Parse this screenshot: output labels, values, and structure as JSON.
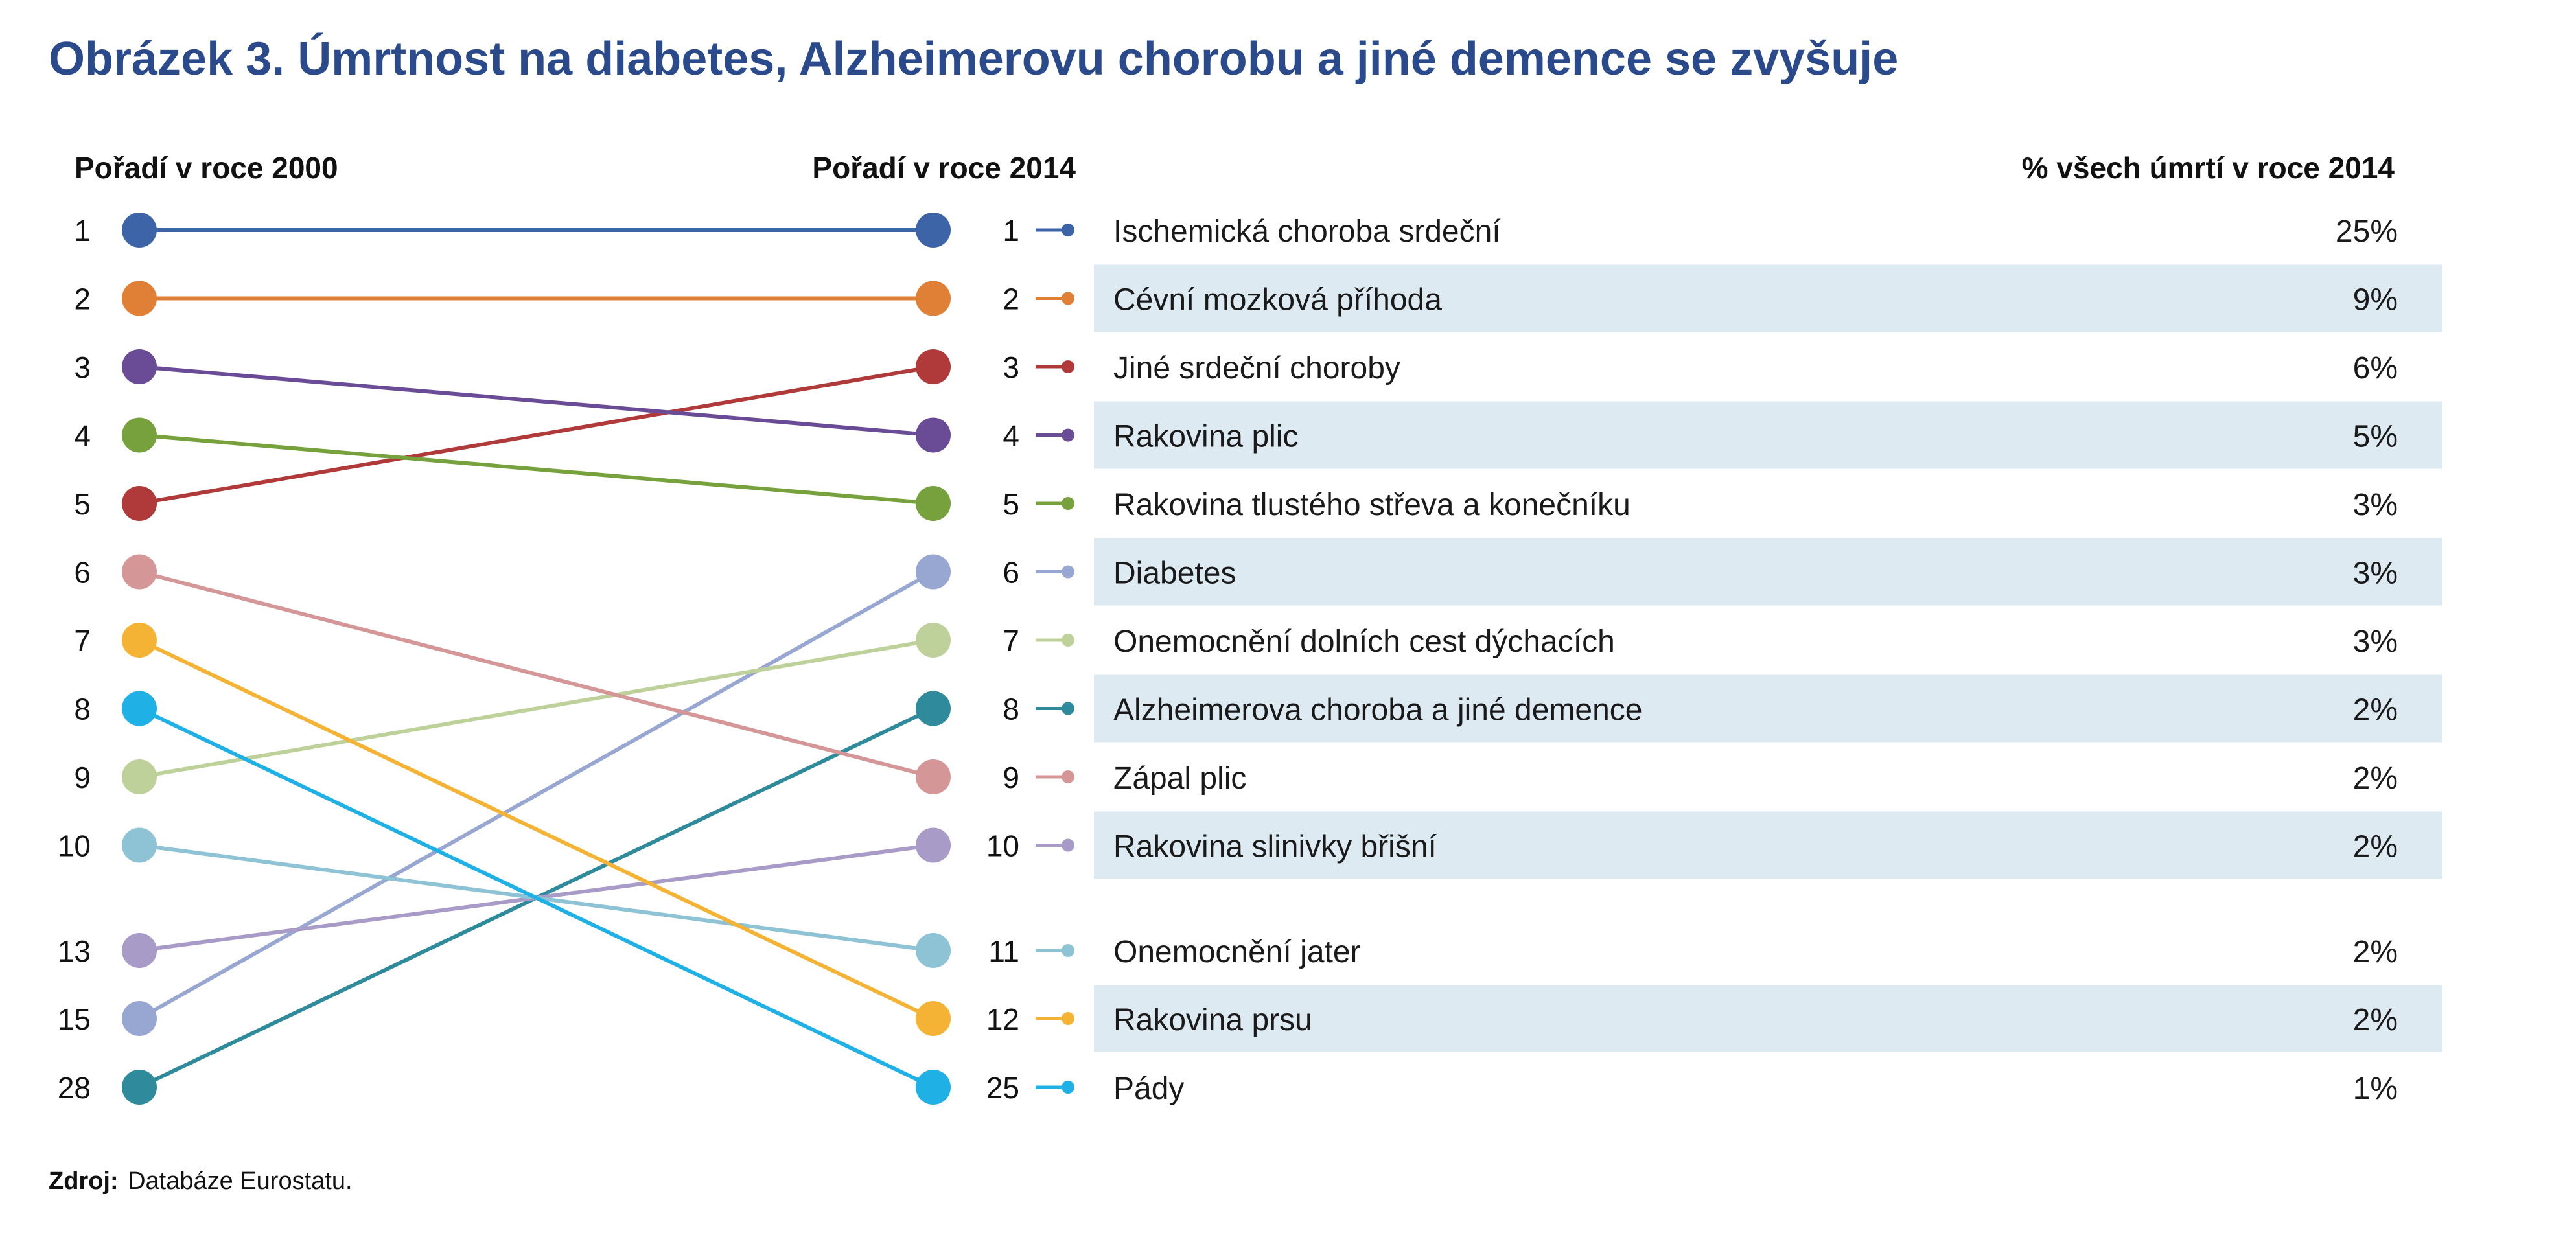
{
  "title": "Obrázek 3. Úmrtnost na diabetes, Alzheimerovu chorobu a jiné demence se zvyšuje",
  "headers": {
    "left": "Pořadí v roce 2000",
    "middle": "Pořadí v roce 2014",
    "right": "% všech úmrtí v roce 2014"
  },
  "source": {
    "label": "Zdroj:",
    "text": "Databáze Eurostatu."
  },
  "chart_data": {
    "type": "slope",
    "title": "Obrázek 3. Úmrtnost na diabetes, Alzheimerovu chorobu a jiné demence se zvyšuje",
    "left_axis_ranks": [
      "1",
      "2",
      "3",
      "4",
      "5",
      "6",
      "7",
      "8",
      "9",
      "10",
      "13",
      "15",
      "28"
    ],
    "series": [
      {
        "cause": "Ischemická choroba srdeční",
        "rank_2000": 1,
        "rank_2014": 1,
        "share_2014": "25%",
        "color": "#3d64a6"
      },
      {
        "cause": "Cévní mozková příhoda",
        "rank_2000": 2,
        "rank_2014": 2,
        "share_2014": "9%",
        "color": "#e07f36"
      },
      {
        "cause": "Jiné srdeční choroby",
        "rank_2000": 5,
        "rank_2014": 3,
        "share_2014": "6%",
        "color": "#b03a3a"
      },
      {
        "cause": "Rakovina plic",
        "rank_2000": 3,
        "rank_2014": 4,
        "share_2014": "5%",
        "color": "#6a4c96"
      },
      {
        "cause": "Rakovina tlustého střeva a konečníku",
        "rank_2000": 4,
        "rank_2014": 5,
        "share_2014": "3%",
        "color": "#76a13c"
      },
      {
        "cause": "Diabetes",
        "rank_2000": 15,
        "rank_2014": 6,
        "share_2014": "3%",
        "color": "#98a7d2"
      },
      {
        "cause": "Onemocnění dolních cest dýchacích",
        "rank_2000": 9,
        "rank_2014": 7,
        "share_2014": "3%",
        "color": "#bfd19a"
      },
      {
        "cause": "Alzheimerova choroba a jiné demence",
        "rank_2000": 28,
        "rank_2014": 8,
        "share_2014": "2%",
        "color": "#2f8b9b"
      },
      {
        "cause": "Zápal plic",
        "rank_2000": 6,
        "rank_2014": 9,
        "share_2014": "2%",
        "color": "#d49696"
      },
      {
        "cause": "Rakovina slinivky břišní",
        "rank_2000": 13,
        "rank_2014": 10,
        "share_2014": "2%",
        "color": "#a99bc7"
      },
      {
        "cause": "Onemocnění jater",
        "rank_2000": 10,
        "rank_2014": 11,
        "share_2014": "2%",
        "color": "#8ec3d6"
      },
      {
        "cause": "Rakovina prsu",
        "rank_2000": 7,
        "rank_2014": 12,
        "share_2014": "2%",
        "color": "#f5b335"
      },
      {
        "cause": "Pády",
        "rank_2000": 8,
        "rank_2014": 25,
        "share_2014": "1%",
        "color": "#1fb0e6"
      }
    ]
  },
  "colors": {
    "title": "#2a4a8c",
    "row_band": "#deeaf2"
  }
}
